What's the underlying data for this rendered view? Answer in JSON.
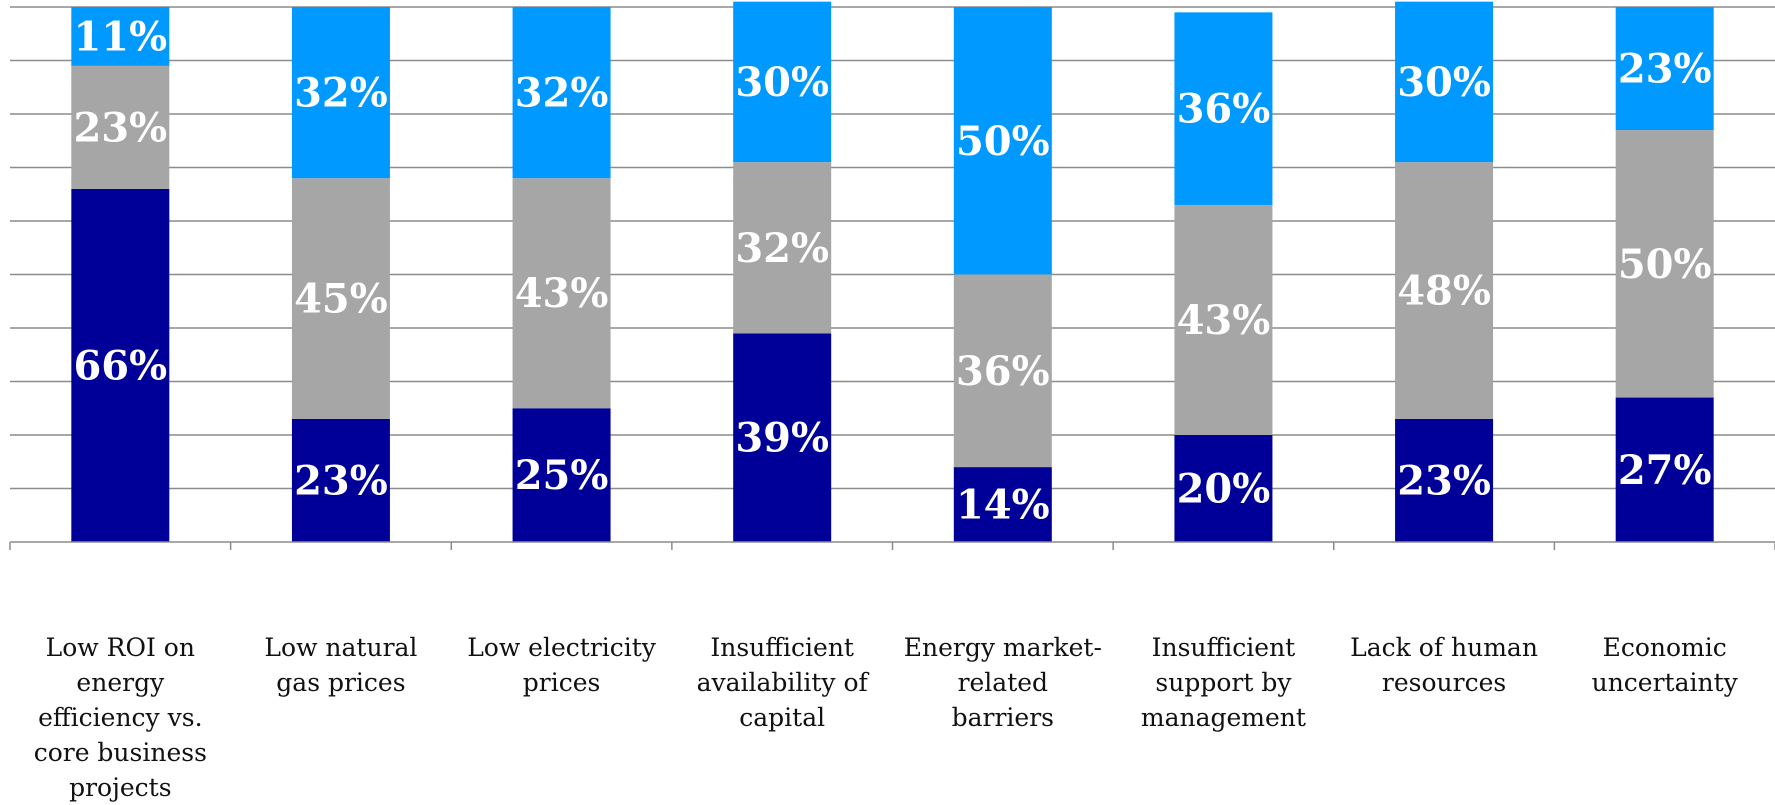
{
  "chart_data": {
    "type": "bar",
    "stacked": true,
    "categories": [
      "Low ROI on energy efficiency vs. core business projects",
      "Low natural gas prices",
      "Low electricity prices",
      "Insufficient availability of capital",
      "Energy market-related barriers",
      "Insufficient support by management",
      "Lack of human resources",
      "Economic uncertainty"
    ],
    "series": [
      {
        "values": [
          66,
          23,
          25,
          39,
          14,
          20,
          23,
          27
        ],
        "color": "#000099"
      },
      {
        "values": [
          23,
          45,
          43,
          32,
          36,
          43,
          48,
          50
        ],
        "color": "#A6A6A6"
      },
      {
        "values": [
          11,
          32,
          32,
          30,
          50,
          36,
          30,
          23
        ],
        "color": "#0099FF"
      }
    ],
    "value_suffix": "%",
    "ylim": [
      0,
      100
    ],
    "grid": true,
    "legend": "none"
  }
}
